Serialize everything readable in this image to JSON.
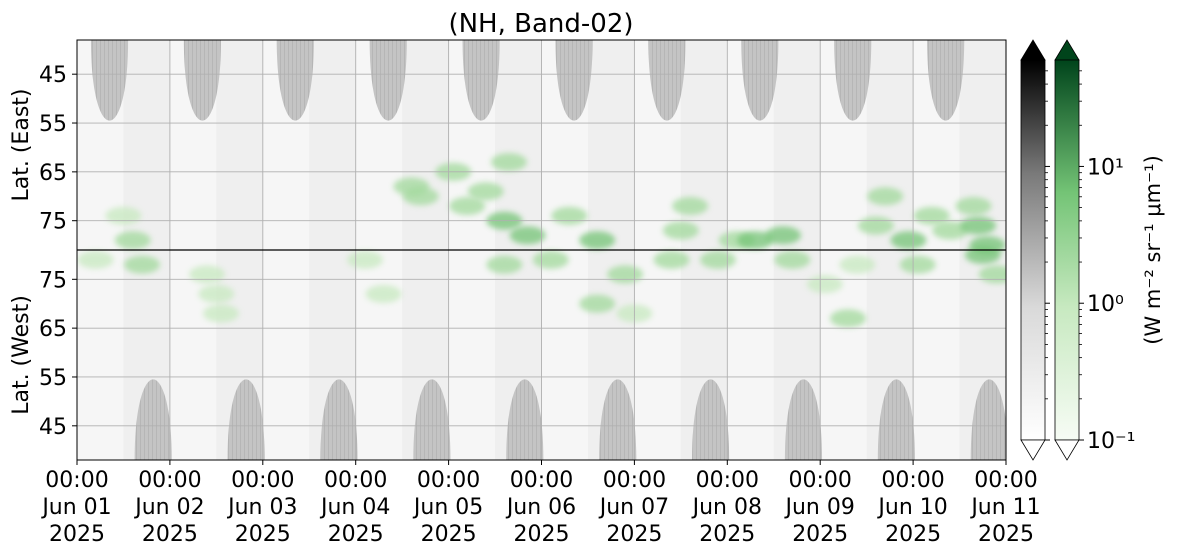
{
  "chart_data": {
    "type": "heatmap",
    "title": "(NH, Band-02)",
    "panels": [
      {
        "name": "east",
        "ylabel": "Lat. (East)",
        "yticks": [
          45,
          55,
          65,
          75
        ],
        "ylim": [
          38,
          81
        ],
        "y_direction": "increasing-downward",
        "night_lobes_centered_at_day": [
          0.35,
          1.35,
          2.35,
          3.35,
          4.35,
          5.35,
          6.35,
          7.35,
          8.35,
          9.35
        ],
        "night_lobe_edge_lat": 60
      },
      {
        "name": "west",
        "ylabel": "Lat. (West)",
        "yticks": [
          75,
          65,
          55,
          45
        ],
        "ylim": [
          81,
          38
        ],
        "y_direction": "increasing-upward",
        "night_lobes_centered_at_day": [
          0.82,
          1.82,
          2.82,
          3.82,
          4.82,
          5.82,
          6.82,
          7.82,
          8.82,
          9.82
        ],
        "night_lobe_edge_lat": 60
      }
    ],
    "x": {
      "range_days": [
        0,
        10
      ],
      "ticks": [
        {
          "day": 0,
          "time": "00:00",
          "date": "Jun 01",
          "year": "2025"
        },
        {
          "day": 1,
          "time": "00:00",
          "date": "Jun 02",
          "year": "2025"
        },
        {
          "day": 2,
          "time": "00:00",
          "date": "Jun 03",
          "year": "2025"
        },
        {
          "day": 3,
          "time": "00:00",
          "date": "Jun 04",
          "year": "2025"
        },
        {
          "day": 4,
          "time": "00:00",
          "date": "Jun 05",
          "year": "2025"
        },
        {
          "day": 5,
          "time": "00:00",
          "date": "Jun 06",
          "year": "2025"
        },
        {
          "day": 6,
          "time": "00:00",
          "date": "Jun 07",
          "year": "2025"
        },
        {
          "day": 7,
          "time": "00:00",
          "date": "Jun 08",
          "year": "2025"
        },
        {
          "day": 8,
          "time": "00:00",
          "date": "Jun 09",
          "year": "2025"
        },
        {
          "day": 9,
          "time": "00:00",
          "date": "Jun 10",
          "year": "2025"
        },
        {
          "day": 10,
          "time": "00:00",
          "date": "Jun 11",
          "year": "2025"
        }
      ]
    },
    "colorbar": {
      "label": "(W m⁻² sr⁻¹ μm⁻¹)",
      "scale": "log",
      "range": [
        0.1,
        60
      ],
      "ticks": [
        {
          "value": 0.1,
          "label": "10⁻¹"
        },
        {
          "value": 1,
          "label": "10⁰"
        },
        {
          "value": 10,
          "label": "10¹"
        }
      ],
      "colormaps": [
        "Greys",
        "Greens"
      ],
      "extend": "both"
    },
    "green_patches": [
      {
        "day": 0.5,
        "lat": 74,
        "panel": "east",
        "value": 2
      },
      {
        "day": 0.6,
        "lat": 79,
        "panel": "east",
        "value": 3
      },
      {
        "day": 0.2,
        "lat": 79,
        "panel": "west",
        "value": 2
      },
      {
        "day": 0.7,
        "lat": 78,
        "panel": "west",
        "value": 3
      },
      {
        "day": 1.4,
        "lat": 76,
        "panel": "west",
        "value": 2
      },
      {
        "day": 1.5,
        "lat": 72,
        "panel": "west",
        "value": 2
      },
      {
        "day": 1.55,
        "lat": 68,
        "panel": "west",
        "value": 2
      },
      {
        "day": 3.1,
        "lat": 79,
        "panel": "west",
        "value": 1.5
      },
      {
        "day": 3.3,
        "lat": 72,
        "panel": "west",
        "value": 1.5
      },
      {
        "day": 3.6,
        "lat": 68,
        "panel": "east",
        "value": 3
      },
      {
        "day": 3.7,
        "lat": 70,
        "panel": "east",
        "value": 3
      },
      {
        "day": 4.05,
        "lat": 65,
        "panel": "east",
        "value": 4
      },
      {
        "day": 4.2,
        "lat": 72,
        "panel": "east",
        "value": 4
      },
      {
        "day": 4.4,
        "lat": 69,
        "panel": "east",
        "value": 3
      },
      {
        "day": 4.6,
        "lat": 78,
        "panel": "west",
        "value": 3
      },
      {
        "day": 4.6,
        "lat": 75,
        "panel": "east",
        "value": 7
      },
      {
        "day": 4.65,
        "lat": 63,
        "panel": "east",
        "value": 3
      },
      {
        "day": 4.85,
        "lat": 78,
        "panel": "east",
        "value": 5
      },
      {
        "day": 5.1,
        "lat": 79,
        "panel": "west",
        "value": 3
      },
      {
        "day": 5.3,
        "lat": 74,
        "panel": "east",
        "value": 3
      },
      {
        "day": 5.6,
        "lat": 70,
        "panel": "west",
        "value": 3
      },
      {
        "day": 5.6,
        "lat": 79,
        "panel": "east",
        "value": 6
      },
      {
        "day": 5.9,
        "lat": 76,
        "panel": "west",
        "value": 3
      },
      {
        "day": 6.0,
        "lat": 68,
        "panel": "west",
        "value": 2
      },
      {
        "day": 6.4,
        "lat": 79,
        "panel": "west",
        "value": 3
      },
      {
        "day": 6.5,
        "lat": 77,
        "panel": "east",
        "value": 4
      },
      {
        "day": 6.6,
        "lat": 72,
        "panel": "east",
        "value": 3
      },
      {
        "day": 6.9,
        "lat": 79,
        "panel": "west",
        "value": 4
      },
      {
        "day": 7.1,
        "lat": 79,
        "panel": "east",
        "value": 4
      },
      {
        "day": 7.3,
        "lat": 79,
        "panel": "east",
        "value": 5
      },
      {
        "day": 7.6,
        "lat": 78,
        "panel": "east",
        "value": 6
      },
      {
        "day": 7.7,
        "lat": 79,
        "panel": "west",
        "value": 3
      },
      {
        "day": 8.05,
        "lat": 74,
        "panel": "west",
        "value": 2
      },
      {
        "day": 8.3,
        "lat": 67,
        "panel": "west",
        "value": 3
      },
      {
        "day": 8.4,
        "lat": 78,
        "panel": "west",
        "value": 2
      },
      {
        "day": 8.6,
        "lat": 76,
        "panel": "east",
        "value": 3
      },
      {
        "day": 8.7,
        "lat": 70,
        "panel": "east",
        "value": 3
      },
      {
        "day": 8.95,
        "lat": 79,
        "panel": "east",
        "value": 5
      },
      {
        "day": 9.05,
        "lat": 78,
        "panel": "west",
        "value": 3
      },
      {
        "day": 9.2,
        "lat": 74,
        "panel": "east",
        "value": 3
      },
      {
        "day": 9.4,
        "lat": 77,
        "panel": "east",
        "value": 4
      },
      {
        "day": 9.65,
        "lat": 72,
        "panel": "east",
        "value": 4
      },
      {
        "day": 9.7,
        "lat": 76,
        "panel": "east",
        "value": 6
      },
      {
        "day": 9.8,
        "lat": 80,
        "panel": "east",
        "value": 7
      },
      {
        "day": 9.75,
        "lat": 80,
        "panel": "west",
        "value": 6
      },
      {
        "day": 9.9,
        "lat": 76,
        "panel": "west",
        "value": 3
      }
    ]
  }
}
